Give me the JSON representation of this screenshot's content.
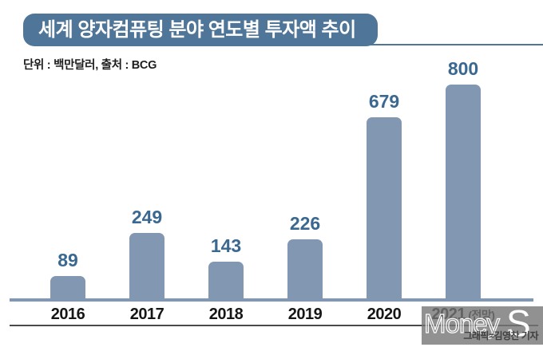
{
  "header": {
    "title": "세계 양자컴퓨팅 분야 연도별 투자액 추이",
    "subtitle": "단위 : 백만달러, 출처 : BCG"
  },
  "chart_data": {
    "type": "bar",
    "title": "세계 양자컴퓨팅 분야 연도별 투자액 추이",
    "categories": [
      "2016",
      "2017",
      "2018",
      "2019",
      "2020",
      "2021 (전망)"
    ],
    "values": [
      89,
      249,
      143,
      226,
      679,
      800
    ],
    "unit": "백만달러",
    "source": "BCG",
    "ylabel": "",
    "xlabel": "",
    "ylim": [
      0,
      810
    ],
    "grid": false,
    "legend": false,
    "bar_color": "#8297b2",
    "value_label_color": "#3a6890",
    "axis_label_color": "#161616",
    "baseline_color": "#8297b2"
  },
  "watermark": {
    "logo_part1": "Money",
    "logo_part2": "S",
    "credit": "그래픽=김영찬 기자"
  },
  "colors": {
    "banner_bg": "#4f7698",
    "banner_text": "#ffffff",
    "bottom_rule": "#4a4a4a",
    "watermark_bg": "rgba(118,118,118,0.80)"
  }
}
